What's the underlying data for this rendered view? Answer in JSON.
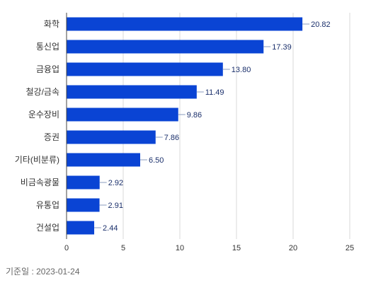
{
  "chart_data": {
    "type": "bar",
    "orientation": "horizontal",
    "categories": [
      "화학",
      "통신업",
      "금융업",
      "철강/금속",
      "운수장비",
      "증권",
      "기타(비분류)",
      "비금속광물",
      "유통업",
      "건설업"
    ],
    "values": [
      20.82,
      17.39,
      13.8,
      11.49,
      9.86,
      7.86,
      6.5,
      2.92,
      2.91,
      2.44
    ],
    "value_labels": [
      "20.82",
      "17.39",
      "13.80",
      "11.49",
      "9.86",
      "7.86",
      "6.50",
      "2.92",
      "2.91",
      "2.44"
    ],
    "xlim": [
      0,
      25
    ],
    "x_ticks": [
      "0",
      "5",
      "10",
      "15",
      "20",
      "25"
    ],
    "grid": true,
    "bar_color": "#0a44d4"
  },
  "footer": {
    "base_date": "기준일 : 2023-01-24"
  }
}
